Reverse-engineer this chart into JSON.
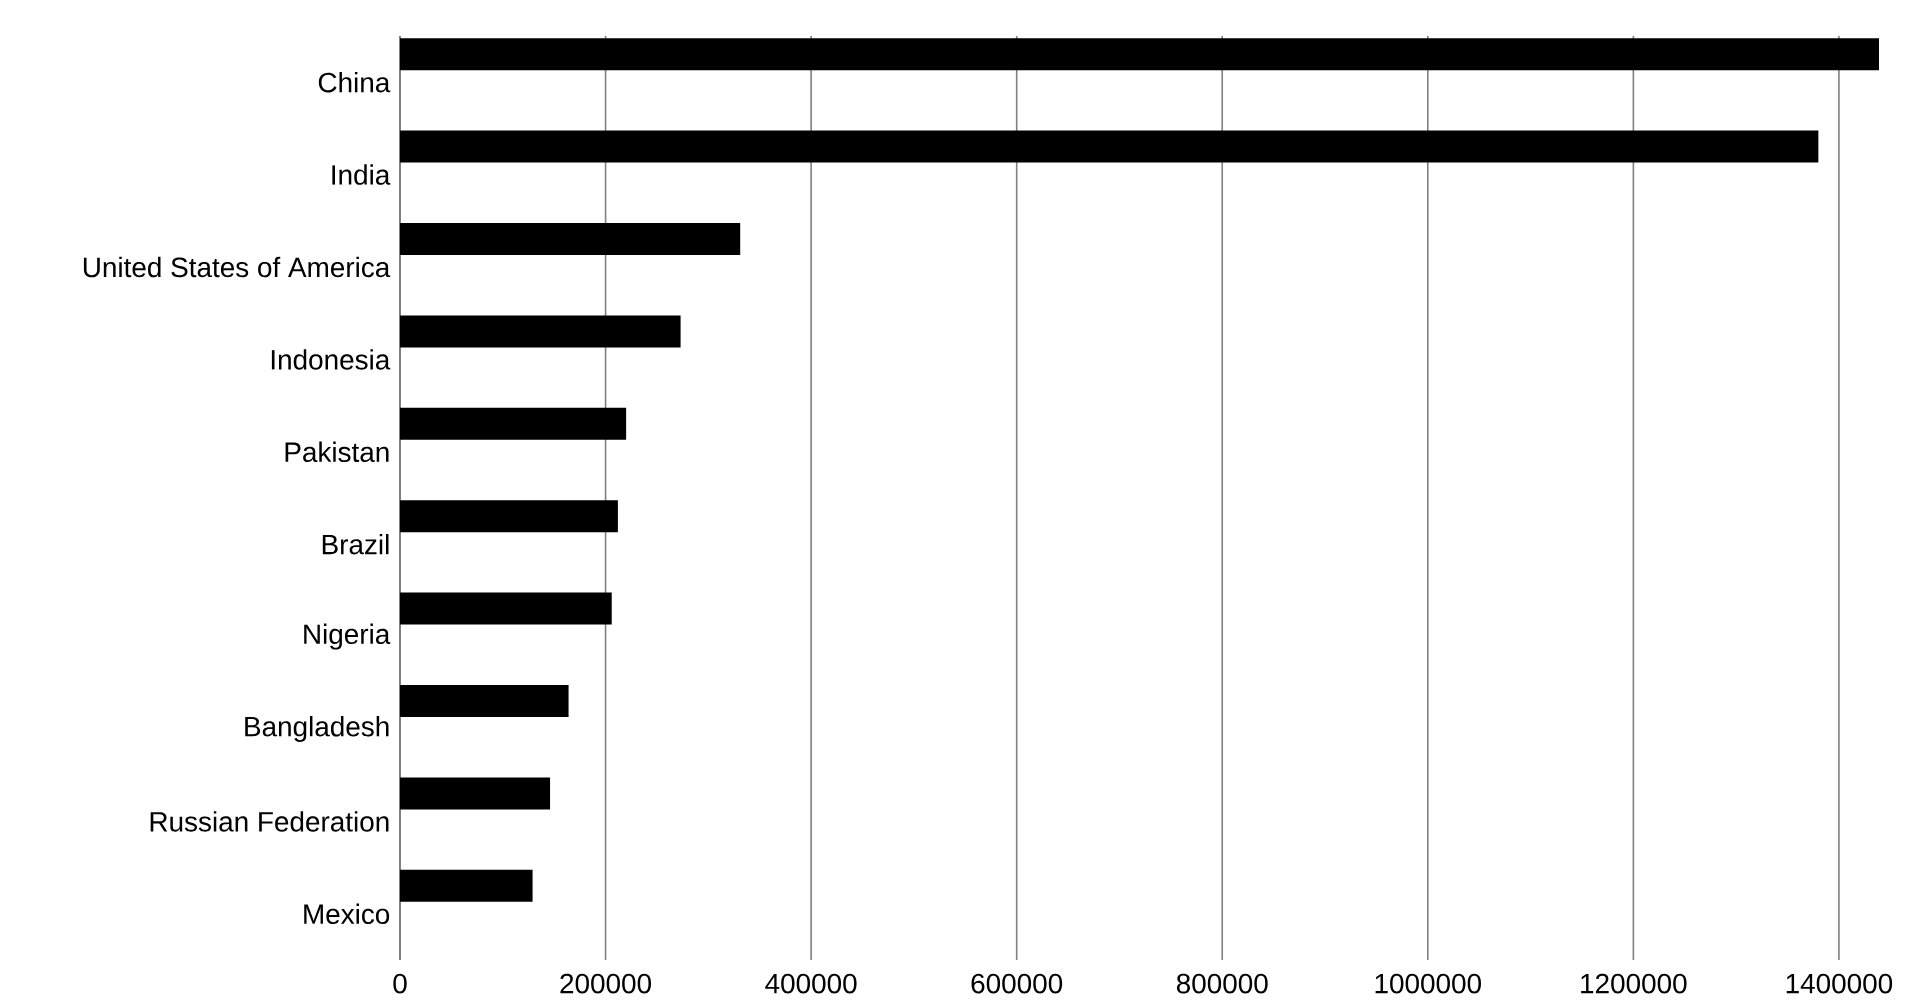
{
  "chart_data": {
    "type": "bar",
    "orientation": "horizontal",
    "categories": [
      "China",
      "India",
      "United States of America",
      "Indonesia",
      "Pakistan",
      "Brazil",
      "Nigeria",
      "Bangladesh",
      "Russian Federation",
      "Mexico"
    ],
    "values": [
      1439000,
      1380000,
      331000,
      273000,
      220000,
      212000,
      206000,
      164000,
      146000,
      129000
    ],
    "color": "#000000",
    "xlim": [
      0,
      1440000
    ],
    "xticks": [
      0,
      200000,
      400000,
      600000,
      800000,
      1000000,
      1200000,
      1400000
    ],
    "grid": "x"
  }
}
